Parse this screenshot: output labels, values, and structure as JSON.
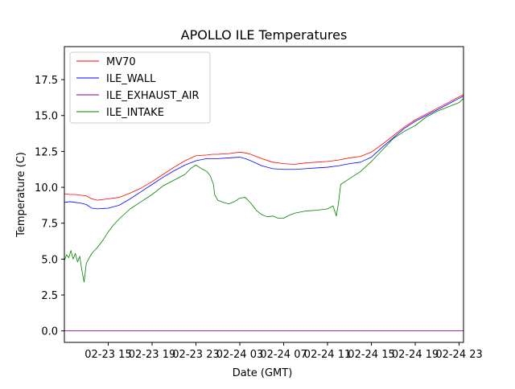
{
  "chart_data": {
    "type": "line",
    "title": "APOLLO ILE Temperatures",
    "xlabel": "Date (GMT)",
    "ylabel": "Temperature (C)",
    "x_unit": "hours since 02-23 11:00 GMT",
    "xlim": [
      0,
      36.4
    ],
    "ylim": [
      -0.8,
      19.8
    ],
    "x_ticks": [
      {
        "x": 4,
        "label": "02-23 15"
      },
      {
        "x": 8,
        "label": "02-23 19"
      },
      {
        "x": 12,
        "label": "02-23 23"
      },
      {
        "x": 16,
        "label": "02-24 03"
      },
      {
        "x": 20,
        "label": "02-24 07"
      },
      {
        "x": 24,
        "label": "02-24 11"
      },
      {
        "x": 28,
        "label": "02-24 15"
      },
      {
        "x": 32,
        "label": "02-24 19"
      },
      {
        "x": 36,
        "label": "02-24 23"
      }
    ],
    "y_ticks": [
      {
        "y": 0.0,
        "label": "0.0"
      },
      {
        "y": 2.5,
        "label": "2.5"
      },
      {
        "y": 5.0,
        "label": "5.0"
      },
      {
        "y": 7.5,
        "label": "7.5"
      },
      {
        "y": 10.0,
        "label": "10.0"
      },
      {
        "y": 12.5,
        "label": "12.5"
      },
      {
        "y": 15.0,
        "label": "15.0"
      },
      {
        "y": 17.5,
        "label": "17.5"
      }
    ],
    "legend_position": "upper-left",
    "series": [
      {
        "name": "MV70",
        "color": "#ff0000",
        "x": [
          0,
          0.5,
          1,
          1.5,
          2,
          2.5,
          3,
          4,
          5,
          6,
          7,
          8,
          9,
          10,
          11,
          12,
          13,
          13.5,
          14,
          15,
          16,
          16.5,
          17,
          18,
          19,
          20,
          21,
          22,
          23,
          24,
          25,
          26,
          27,
          28,
          29,
          30,
          31,
          32,
          33,
          34,
          35,
          36,
          36.4
        ],
        "values": [
          9.55,
          9.5,
          9.5,
          9.45,
          9.4,
          9.2,
          9.1,
          9.2,
          9.3,
          9.6,
          9.95,
          10.4,
          10.9,
          11.4,
          11.85,
          12.2,
          12.25,
          12.3,
          12.3,
          12.35,
          12.45,
          12.4,
          12.3,
          12.0,
          11.75,
          11.65,
          11.6,
          11.7,
          11.75,
          11.8,
          11.9,
          12.05,
          12.15,
          12.45,
          13.0,
          13.6,
          14.2,
          14.7,
          15.1,
          15.5,
          15.9,
          16.3,
          16.45
        ]
      },
      {
        "name": "ILE_WALL",
        "color": "#0000ff",
        "x": [
          0,
          0.5,
          1,
          1.5,
          2,
          2.5,
          3,
          4,
          5,
          6,
          7,
          8,
          9,
          10,
          11,
          12,
          13,
          13.5,
          14,
          15,
          16,
          16.5,
          17,
          18,
          19,
          20,
          21,
          22,
          23,
          24,
          25,
          26,
          27,
          28,
          29,
          30,
          31,
          32,
          33,
          34,
          35,
          36,
          36.4
        ],
        "values": [
          8.95,
          9.0,
          8.95,
          8.9,
          8.8,
          8.55,
          8.5,
          8.55,
          8.75,
          9.2,
          9.7,
          10.2,
          10.7,
          11.15,
          11.55,
          11.85,
          12.0,
          12.0,
          12.0,
          12.05,
          12.1,
          12.0,
          11.85,
          11.5,
          11.3,
          11.25,
          11.25,
          11.3,
          11.35,
          11.4,
          11.5,
          11.65,
          11.75,
          12.1,
          12.8,
          13.45,
          14.1,
          14.6,
          15.0,
          15.4,
          15.8,
          16.2,
          16.35
        ]
      },
      {
        "name": "ILE_EXHAUST_AIR",
        "color": "#800080",
        "x": [
          0,
          36.4
        ],
        "values": [
          0.0,
          0.0
        ]
      },
      {
        "name": "ILE_INTAKE",
        "color": "#008000",
        "x": [
          0,
          0.2,
          0.4,
          0.6,
          0.8,
          1.0,
          1.2,
          1.4,
          1.6,
          1.8,
          2.0,
          2.2,
          2.5,
          3.0,
          3.5,
          4.0,
          4.5,
          5.0,
          6.0,
          7.0,
          8.0,
          9.0,
          10.0,
          11.0,
          11.5,
          12.0,
          12.5,
          13.0,
          13.3,
          13.6,
          13.7,
          14.0,
          14.5,
          15.0,
          15.5,
          16.0,
          16.5,
          17.0,
          17.5,
          18.0,
          18.5,
          19.0,
          19.5,
          20.0,
          20.5,
          21.0,
          22.0,
          23.0,
          24.0,
          24.5,
          24.8,
          25.0,
          25.2,
          26.0,
          27.0,
          28.0,
          28.5,
          29.0,
          30.0,
          31.0,
          32.0,
          33.0,
          34.0,
          35.0,
          36.0,
          36.4
        ],
        "values": [
          4.9,
          5.3,
          5.1,
          5.6,
          5.0,
          5.4,
          4.8,
          5.2,
          4.2,
          3.4,
          4.7,
          5.0,
          5.4,
          5.8,
          6.3,
          6.9,
          7.4,
          7.8,
          8.5,
          9.0,
          9.5,
          10.1,
          10.5,
          10.9,
          11.3,
          11.55,
          11.3,
          11.1,
          10.8,
          10.2,
          9.5,
          9.1,
          8.95,
          8.85,
          9.0,
          9.25,
          9.3,
          8.9,
          8.4,
          8.1,
          7.95,
          8.0,
          7.85,
          7.85,
          8.05,
          8.2,
          8.35,
          8.4,
          8.5,
          8.7,
          8.0,
          8.9,
          10.2,
          10.6,
          11.1,
          11.8,
          12.2,
          12.6,
          13.4,
          13.9,
          14.3,
          14.9,
          15.3,
          15.6,
          15.9,
          16.2
        ]
      }
    ]
  }
}
